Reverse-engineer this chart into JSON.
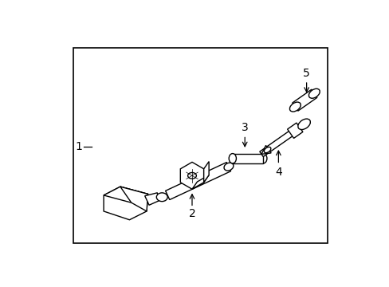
{
  "background_color": "#ffffff",
  "border_color": "#000000",
  "border_linewidth": 1.2,
  "label_color": "#000000",
  "label_fontsize": 10,
  "fig_width": 4.89,
  "fig_height": 3.6,
  "dpi": 100,
  "border": [
    0.12,
    0.07,
    0.84,
    0.88
  ]
}
